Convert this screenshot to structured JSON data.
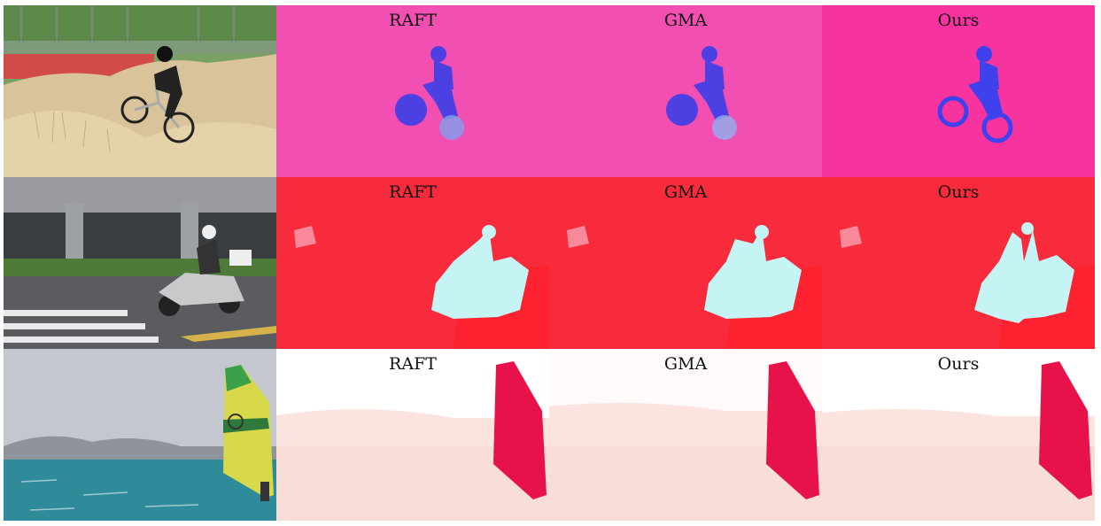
{
  "rows": [
    {
      "photo": "bmx-rider-photo",
      "flows": [
        {
          "label": "RAFT",
          "background": "#f24fb2",
          "object": "#3b3fe8"
        },
        {
          "label": "GMA",
          "background": "#f24fb2",
          "object": "#3b3fe8"
        },
        {
          "label": "Ours",
          "background": "#f7339f",
          "object": "#3f42ec"
        }
      ]
    },
    {
      "photo": "scooter-rider-photo",
      "flows": [
        {
          "label": "RAFT",
          "background": "#f72b3c",
          "object": "#c6f3f4"
        },
        {
          "label": "GMA",
          "background": "#f72b3c",
          "object": "#c6f3f4"
        },
        {
          "label": "Ours",
          "background": "#f72b3c",
          "object": "#c6f3f4"
        }
      ]
    },
    {
      "photo": "windsurfer-photo",
      "flows": [
        {
          "label": "RAFT",
          "background": "#fbe4df",
          "object": "#e8124a"
        },
        {
          "label": "GMA",
          "background": "#fbe4df",
          "object": "#e8124a"
        },
        {
          "label": "Ours",
          "background": "#fbe4df",
          "object": "#e8124a"
        }
      ]
    }
  ]
}
